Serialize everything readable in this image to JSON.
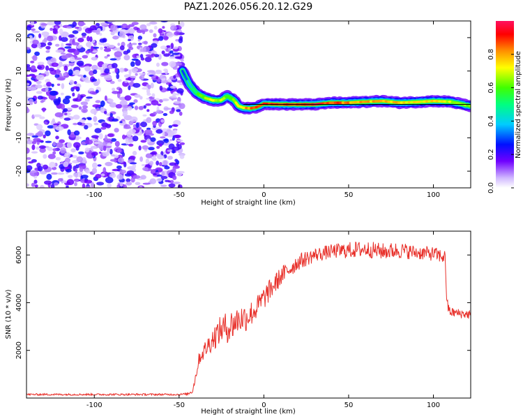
{
  "title": "PAZ1.2026.056.20.12.G29",
  "chart_data": [
    {
      "type": "heatmap",
      "xlabel": "Height of straight line (km)",
      "ylabel": "Frequency (Hz)",
      "xlim": [
        -140,
        122
      ],
      "ylim": [
        -25,
        25
      ],
      "xticks": [
        -100,
        -50,
        0,
        50,
        100
      ],
      "yticks": [
        -20,
        -10,
        0,
        10,
        20
      ],
      "colorbar": {
        "label": "Normalized spectral amplitude",
        "range": [
          0,
          1
        ],
        "ticks": [
          0.0,
          0.2,
          0.4,
          0.6,
          0.8
        ],
        "colors": [
          "#ffffff",
          "#c8a8ff",
          "#7000ff",
          "#0010ff",
          "#00ccff",
          "#00ff66",
          "#66ff00",
          "#ffff00",
          "#ff8000",
          "#ff0000",
          "#ff1060"
        ]
      },
      "noise_region_km": [
        -140,
        -48
      ],
      "ridge": {
        "x": [
          -48,
          -44,
          -40,
          -35,
          -30,
          -25,
          -22,
          -18,
          -15,
          -12,
          -8,
          -4,
          0,
          10,
          20,
          30,
          40,
          50,
          60,
          70,
          80,
          90,
          100,
          110,
          122
        ],
        "freq": [
          10,
          6,
          3.5,
          2,
          1.2,
          1.2,
          2.5,
          1.5,
          -0.5,
          -1,
          -1.2,
          -0.8,
          0.2,
          0,
          0,
          0,
          0.5,
          0.5,
          0.8,
          1,
          0.5,
          0.7,
          1,
          0.8,
          -0.5
        ],
        "amplitude": [
          0.3,
          0.45,
          0.6,
          0.7,
          0.75,
          0.7,
          0.65,
          0.7,
          0.8,
          0.85,
          0.9,
          0.9,
          0.92,
          0.95,
          0.97,
          1.0,
          0.95,
          0.88,
          0.85,
          0.85,
          0.8,
          0.8,
          0.78,
          0.75,
          0.7
        ]
      }
    },
    {
      "type": "line",
      "xlabel": "Height of straight line (km)",
      "ylabel": "SNR (10 * v/v)",
      "xlim": [
        -140,
        122
      ],
      "ylim": [
        0,
        7000
      ],
      "xticks": [
        -100,
        -50,
        0,
        50,
        100
      ],
      "yticks": [
        2000,
        4000,
        6000
      ],
      "series": [
        {
          "name": "SNR",
          "color": "#e8302a",
          "envelope_x": [
            -140,
            -50,
            -45,
            -42,
            -38,
            -30,
            -25,
            -20,
            -15,
            -10,
            -5,
            0,
            10,
            20,
            30,
            40,
            50,
            60,
            70,
            80,
            90,
            100,
            107,
            108,
            110,
            115,
            122
          ],
          "envelope_mean": [
            150,
            150,
            170,
            300,
            1700,
            2500,
            2900,
            3000,
            3300,
            3400,
            3700,
            4200,
            5100,
            5700,
            6000,
            6150,
            6200,
            6250,
            6150,
            6200,
            6100,
            6050,
            5900,
            3900,
            3600,
            3550,
            3500
          ],
          "envelope_spread": [
            40,
            40,
            50,
            100,
            300,
            500,
            600,
            700,
            600,
            600,
            500,
            500,
            400,
            350,
            300,
            300,
            350,
            350,
            350,
            350,
            300,
            300,
            300,
            300,
            200,
            200,
            200
          ]
        }
      ]
    }
  ]
}
